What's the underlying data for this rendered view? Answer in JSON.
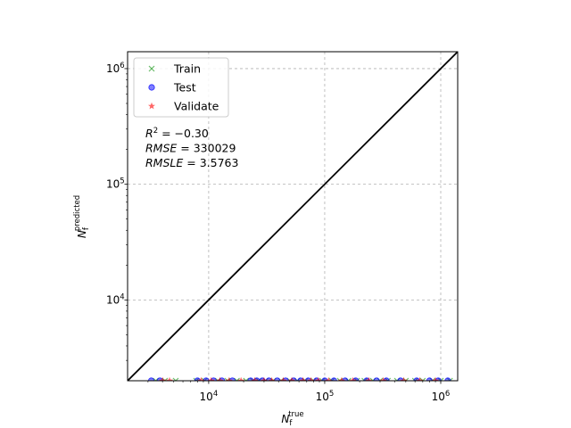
{
  "chart_data": {
    "type": "scatter",
    "xscale": "log",
    "yscale": "log",
    "xlim": [
      2000,
      1400000
    ],
    "ylim": [
      2000,
      1400000
    ],
    "xlabel": {
      "base": "N",
      "sub": "f",
      "sup": "true"
    },
    "ylabel": {
      "base": "N",
      "sub": "f",
      "sup": "predicted"
    },
    "x_ticks": [
      {
        "value": 10000,
        "base": "10",
        "exp": "4"
      },
      {
        "value": 100000,
        "base": "10",
        "exp": "5"
      },
      {
        "value": 1000000,
        "base": "10",
        "exp": "6"
      }
    ],
    "y_ticks": [
      {
        "value": 10000,
        "base": "10",
        "exp": "4"
      },
      {
        "value": 100000,
        "base": "10",
        "exp": "5"
      },
      {
        "value": 1000000,
        "base": "10",
        "exp": "6"
      }
    ],
    "grid": true,
    "legend_position": "top-left",
    "reference_line": {
      "from": [
        2000,
        2000
      ],
      "to": [
        1400000,
        1400000
      ],
      "color": "#000000"
    },
    "stats": [
      {
        "lhs": "R",
        "sup": "2",
        "rhs": " = −0.30"
      },
      {
        "lhs": "RMSE",
        "sup": "",
        "rhs": " = 330029"
      },
      {
        "lhs": "RMSLE",
        "sup": "",
        "rhs": " = 3.5763"
      }
    ],
    "series": [
      {
        "name": "Train",
        "marker": "x",
        "color": "#2ca02c",
        "x": [
          3500,
          4200,
          5200,
          7800,
          9200,
          12000,
          14500,
          17500,
          21000,
          24000,
          27000,
          31000,
          36000,
          42000,
          50000,
          58000,
          68000,
          80000,
          95000,
          115000,
          135000,
          160000,
          190000,
          220000,
          260000,
          300000,
          350000,
          420000,
          500000,
          600000,
          700000,
          850000,
          1000000,
          1200000
        ],
        "y": [
          2000,
          2000,
          2000,
          2000,
          2000,
          2000,
          2000,
          2000,
          2000,
          2000,
          2000,
          2000,
          2000,
          2000,
          2000,
          2000,
          2000,
          2000,
          2000,
          2000,
          2000,
          2000,
          2000,
          2000,
          2000,
          2000,
          2000,
          2000,
          2000,
          2000,
          2000,
          2000,
          2000,
          2000
        ]
      },
      {
        "name": "Test",
        "marker": "o",
        "color": "#0000ff",
        "x": [
          3200,
          3800,
          8000,
          9500,
          11000,
          13000,
          16000,
          23000,
          26000,
          29000,
          33000,
          39000,
          46000,
          54000,
          62000,
          72000,
          85000,
          100000,
          120000,
          150000,
          185000,
          230000,
          280000,
          340000,
          450000,
          620000,
          800000,
          950000,
          1150000
        ],
        "y": [
          2000,
          2000,
          2000,
          2000,
          2000,
          2000,
          2000,
          2000,
          2000,
          2000,
          2000,
          2000,
          2000,
          2000,
          2000,
          2000,
          2000,
          2000,
          2000,
          2000,
          2000,
          2000,
          2000,
          2000,
          2000,
          2000,
          2000,
          2000,
          2000
        ]
      },
      {
        "name": "Validate",
        "marker": "*",
        "color": "#ff0000",
        "x": [
          4000,
          4600,
          8600,
          10500,
          12500,
          15000,
          19000,
          25000,
          30000,
          35000,
          44000,
          52000,
          65000,
          76000,
          88000,
          108000,
          140000,
          175000,
          240000,
          320000,
          480000,
          660000,
          900000
        ],
        "y": [
          2000,
          2000,
          2000,
          2000,
          2000,
          2000,
          2000,
          2000,
          2000,
          2000,
          2000,
          2000,
          2000,
          2000,
          2000,
          2000,
          2000,
          2000,
          2000,
          2000,
          2000,
          2000,
          2000
        ]
      }
    ]
  }
}
